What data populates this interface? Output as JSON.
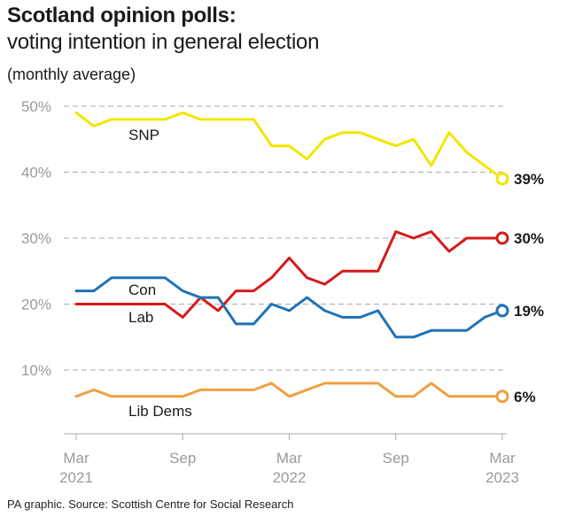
{
  "header": {
    "title": "Scotland opinion polls:",
    "subtitle": "voting intention in general election",
    "unit_note": "(monthly average)"
  },
  "footer": {
    "source": "PA graphic. Source: Scottish Centre for Social Research"
  },
  "chart_data": {
    "type": "line",
    "title": "Scotland opinion polls:",
    "subtitle": "voting intention in general election",
    "ylabel": "",
    "xlabel": "",
    "ylim": [
      0,
      50
    ],
    "y_ticks": [
      "10%",
      "20%",
      "30%",
      "40%",
      "50%"
    ],
    "y_tick_values": [
      10,
      20,
      30,
      40,
      50
    ],
    "grid": "horizontal dashed",
    "x_tick_labels": [
      {
        "month": "Mar 2021",
        "line1": "Mar",
        "line2": "2021"
      },
      {
        "month": "Sep 2021",
        "line1": "Sep",
        "line2": ""
      },
      {
        "month": "Mar 2022",
        "line1": "Mar",
        "line2": "2022"
      },
      {
        "month": "Sep 2022",
        "line1": "Sep",
        "line2": ""
      },
      {
        "month": "Mar 2023",
        "line1": "Mar",
        "line2": "2023"
      }
    ],
    "x": [
      "Mar 2021",
      "Apr 2021",
      "May 2021",
      "Jun 2021",
      "Jul 2021",
      "Aug 2021",
      "Sep 2021",
      "Oct 2021",
      "Nov 2021",
      "Dec 2021",
      "Jan 2022",
      "Feb 2022",
      "Mar 2022",
      "Apr 2022",
      "May 2022",
      "Jun 2022",
      "Jul 2022",
      "Aug 2022",
      "Sep 2022",
      "Oct 2022",
      "Nov 2022",
      "Dec 2022",
      "Jan 2023",
      "Feb 2023",
      "Mar 2023"
    ],
    "series": [
      {
        "name": "SNP",
        "color": "#f2e600",
        "end_label": "39%",
        "values": [
          49,
          47,
          48,
          48,
          48,
          48,
          49,
          48,
          48,
          48,
          48,
          44,
          44,
          42,
          45,
          46,
          46,
          45,
          44,
          45,
          41,
          46,
          43,
          41,
          39
        ]
      },
      {
        "name": "Lab",
        "color": "#d7191c",
        "end_label": "30%",
        "values": [
          20,
          20,
          20,
          20,
          20,
          20,
          18,
          21,
          19,
          22,
          22,
          24,
          27,
          24,
          23,
          25,
          25,
          25,
          31,
          30,
          31,
          28,
          30,
          30,
          30
        ]
      },
      {
        "name": "Con",
        "color": "#1f72b8",
        "end_label": "19%",
        "values": [
          22,
          22,
          24,
          24,
          24,
          24,
          22,
          21,
          21,
          17,
          17,
          20,
          19,
          21,
          19,
          18,
          18,
          19,
          15,
          15,
          16,
          16,
          16,
          18,
          19
        ]
      },
      {
        "name": "Lib Dems",
        "color": "#f0a040",
        "end_label": "6%",
        "values": [
          6,
          7,
          6,
          6,
          6,
          6,
          6,
          7,
          7,
          7,
          7,
          8,
          6,
          7,
          8,
          8,
          8,
          8,
          6,
          6,
          8,
          6,
          6,
          6,
          6
        ]
      }
    ]
  }
}
